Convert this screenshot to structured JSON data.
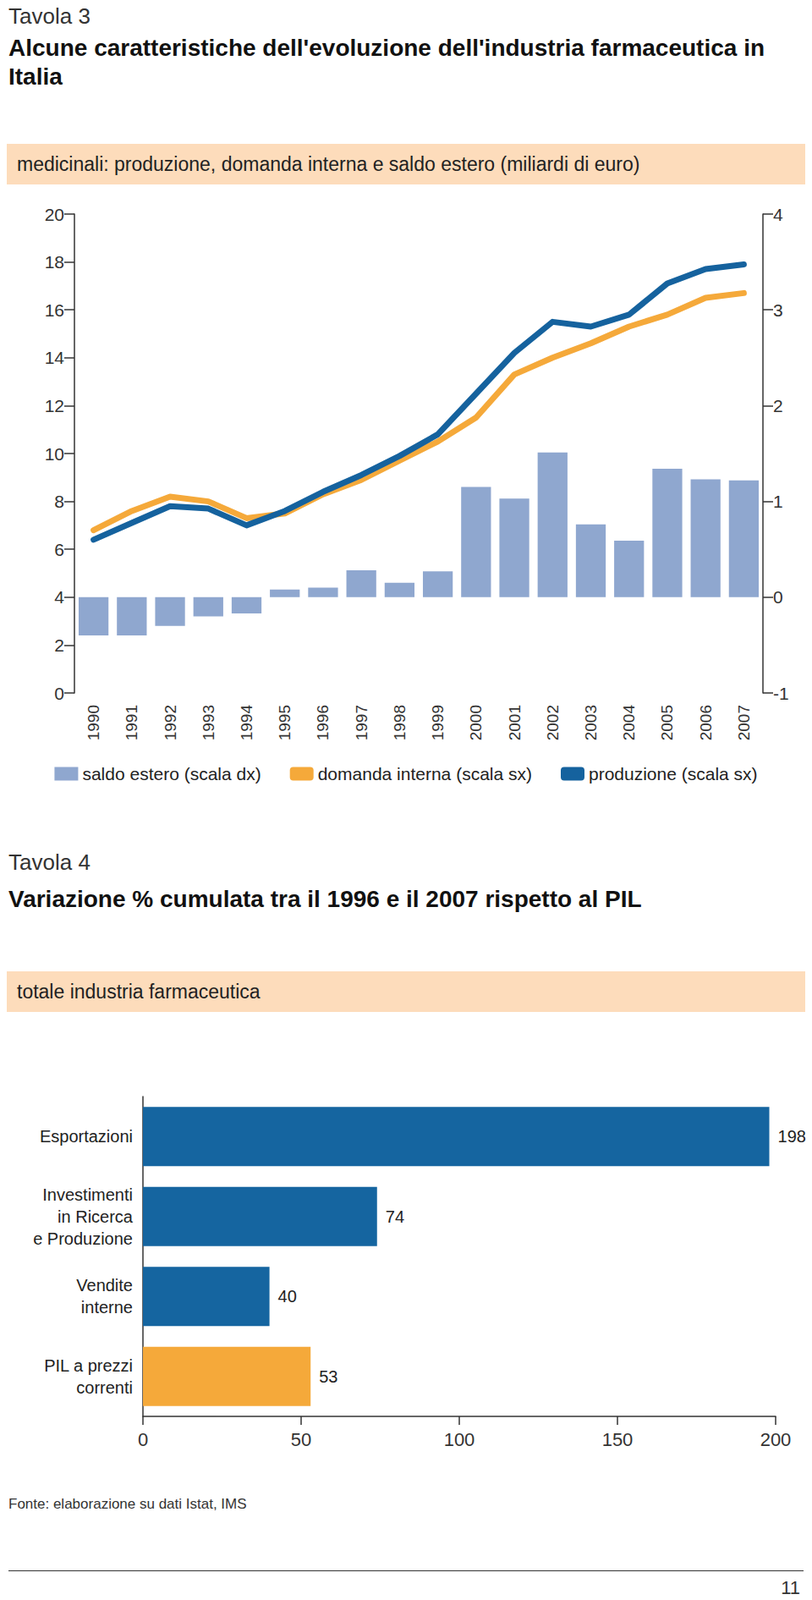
{
  "chart_data": [
    {
      "type": "bar",
      "label": "Tavola 3",
      "title": "Alcune caratteristiche dell'evoluzione dell'industria farmaceutica in Italia",
      "subtitle": "medicinali: produzione, domanda interna e saldo estero (miliardi di euro)",
      "categories": [
        "1990",
        "1991",
        "1992",
        "1993",
        "1994",
        "1995",
        "1996",
        "1997",
        "1998",
        "1999",
        "2000",
        "2001",
        "2002",
        "2003",
        "2004",
        "2005",
        "2006",
        "2007"
      ],
      "series": [
        {
          "name": "saldo estero (scala dx)",
          "type": "bar",
          "axis": "y2",
          "color": "#8fa7cf",
          "values": [
            -0.4,
            -0.4,
            -0.3,
            -0.2,
            -0.17,
            0.08,
            0.1,
            0.28,
            0.15,
            0.27,
            1.15,
            1.03,
            1.51,
            0.76,
            0.59,
            1.34,
            1.23,
            1.22
          ]
        },
        {
          "name": "domanda interna (scala sx)",
          "type": "line",
          "color": "#f5a93a",
          "line_style": "solid",
          "values": [
            6.8,
            7.6,
            8.2,
            8.0,
            7.3,
            7.5,
            8.3,
            8.9,
            9.7,
            10.5,
            11.5,
            13.3,
            14.0,
            14.6,
            15.3,
            15.8,
            16.5,
            16.7
          ]
        },
        {
          "name": "produzione (scala sx)",
          "type": "line",
          "color": "#15629e",
          "line_style": "solid",
          "values": [
            6.4,
            7.1,
            7.8,
            7.7,
            7.0,
            7.6,
            8.4,
            9.1,
            9.9,
            10.8,
            12.5,
            14.2,
            15.5,
            15.3,
            15.8,
            17.1,
            17.7,
            17.9
          ]
        }
      ],
      "ylim": [
        0,
        20
      ],
      "yticks": [
        0,
        2,
        4,
        6,
        8,
        10,
        12,
        14,
        16,
        18,
        20
      ],
      "y2lim": [
        -1,
        4
      ],
      "y2ticks": [
        -1,
        0,
        1,
        2,
        3,
        4
      ],
      "grid": false,
      "legend": "bottom"
    },
    {
      "type": "bar",
      "label": "Tavola 4",
      "title": "Variazione % cumulata tra il 1996 e il 2007 rispetto al PIL",
      "subtitle": "totale industria farmaceutica",
      "orientation": "horizontal",
      "categories": [
        "Esportazioni",
        "Investimenti\nin Ricerca\ne Produzione",
        "Vendite\ninterne",
        "PIL a prezzi\ncorrenti"
      ],
      "values": [
        198,
        74,
        40,
        53
      ],
      "colors": [
        "#1565a0",
        "#1565a0",
        "#1565a0",
        "#f5a93a"
      ],
      "xlim": [
        0,
        200
      ],
      "xticks": [
        0,
        50,
        100,
        150,
        200
      ],
      "data_labels": true,
      "grid": false
    }
  ],
  "source": "Fonte: elaborazione su dati Istat, IMS",
  "page": "11"
}
